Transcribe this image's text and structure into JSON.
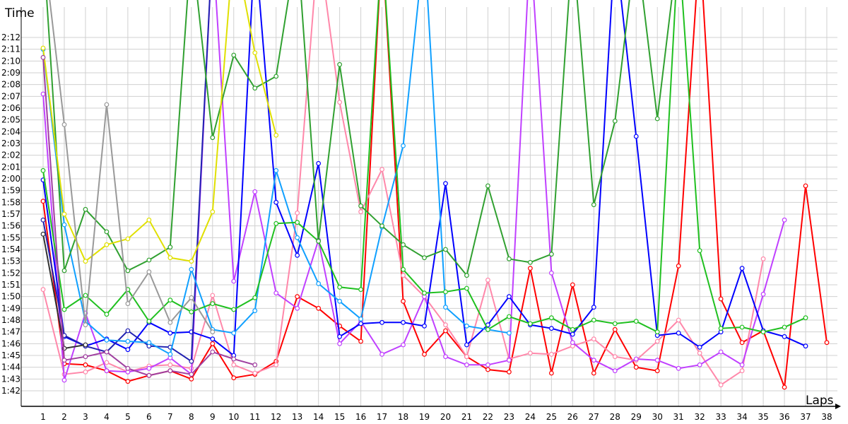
{
  "chart_data": {
    "type": "line",
    "ylabel": "Time",
    "xlabel": "Laps",
    "grid": true,
    "ylim": [
      "1:42",
      "2:12"
    ],
    "xlim": [
      1,
      38
    ],
    "y_ticks": [
      "1:42",
      "1:43",
      "1:44",
      "1:45",
      "1:46",
      "1:47",
      "1:48",
      "1:49",
      "1:50",
      "1:51",
      "1:52",
      "1:53",
      "1:54",
      "1:55",
      "1:56",
      "1:57",
      "1:58",
      "1:59",
      "2:00",
      "2:01",
      "2:02",
      "2:03",
      "2:04",
      "2:05",
      "2:06",
      "2:07",
      "2:08",
      "2:09",
      "2:10",
      "2:11",
      "2:12"
    ],
    "x_ticks": [
      "1",
      "2",
      "3",
      "4",
      "5",
      "6",
      "7",
      "8",
      "9",
      "10",
      "11",
      "12",
      "13",
      "14",
      "15",
      "16",
      "17",
      "18",
      "19",
      "20",
      "21",
      "22",
      "23",
      "24",
      "25",
      "26",
      "27",
      "28",
      "29",
      "30",
      "31",
      "32",
      "33",
      "34",
      "35",
      "36",
      "37",
      "38"
    ],
    "series": [
      {
        "color": "#ff0000",
        "values": [
          "1:58.1",
          "1:44.3",
          "1:44.2",
          "1:43.7",
          "1:42.8",
          "1:43.3",
          "1:43.7",
          "1:43.0",
          "1:46.0",
          "1:43.1",
          "1:43.4",
          "1:44.5",
          "1:50.0",
          "1:49.0",
          "1:47.5",
          "1:46.2",
          "2:20",
          "1:49.6",
          "1:45.1",
          "1:47.1",
          "1:44.9",
          "1:43.8",
          "1:43.6",
          "1:52.4",
          "1:43.5",
          "1:51.0",
          "1:43.5",
          "1:47.2",
          "1:44.0",
          "1:43.7",
          "1:52.6",
          "2:20",
          "1:49.8",
          "1:46.1",
          "1:47.1",
          "1:42.3",
          "1:59.4",
          "1:46.1"
        ]
      },
      {
        "color": "#ff88aa",
        "values": [
          "1:50.6",
          "1:43.4",
          "1:43.6",
          "1:44.4",
          "1:43.6",
          "1:44.1",
          "1:44.2",
          "1:43.9",
          "1:50.1",
          "1:44.2",
          "1:43.5",
          "1:44.2",
          "1:57.1",
          "2:20",
          "2:06.5",
          "1:57.2",
          "2:00.8",
          "1:51.8",
          "1:50.0",
          "1:47.6",
          "1:44.9",
          "1:51.4",
          "1:44.7",
          "1:45.2",
          "1:45.1",
          "1:45.8",
          "1:46.4",
          "1:44.9",
          "1:44.6",
          "1:46.2",
          "1:48.0",
          "1:45.2",
          "1:42.5",
          "1:43.7",
          "1:53.2",
          null,
          null,
          null
        ]
      },
      {
        "color": "#c040ff",
        "values": [
          "2:07.2",
          "1:42.9",
          "1:48.6",
          "1:43.7",
          "1:43.6",
          "1:43.9",
          "1:44.8",
          "1:43.4",
          "2:20",
          "1:51.3",
          "1:58.9",
          "1:50.3",
          "1:49.0",
          "1:54.8",
          "1:46.0",
          "1:47.9",
          "1:45.1",
          "1:45.9",
          "1:50.0",
          "1:44.9",
          "1:44.2",
          "1:44.2",
          "1:44.6",
          "2:20",
          "1:52.0",
          "1:46.1",
          "1:44.6",
          "1:43.7",
          "1:44.7",
          "1:44.6",
          "1:43.9",
          "1:44.2",
          "1:45.3",
          "1:44.2",
          "1:50.2",
          "1:56.5",
          null,
          null
        ]
      },
      {
        "color": "#0000ff",
        "values": [
          "1:59.9",
          "1:46.6",
          "1:45.8",
          "1:46.4",
          "1:45.5",
          "1:47.8",
          "1:46.9",
          "1:47.0",
          "1:46.4",
          "1:45.0",
          "2:20",
          "1:58.0",
          "1:53.5",
          "2:01.3",
          "1:46.6",
          "1:47.7",
          "1:47.8",
          "1:47.8",
          "1:47.5",
          "1:59.6",
          "1:45.9",
          "1:47.6",
          "1:50.0",
          "1:47.6",
          "1:47.3",
          "1:46.8",
          "1:49.1",
          "2:20",
          "2:03.6",
          "1:46.7",
          "1:46.9",
          "1:45.7",
          "1:47.0",
          "1:52.4",
          "1:47.1",
          "1:46.6",
          "1:45.8",
          null
        ]
      },
      {
        "color": "#2020b0",
        "values": [
          "1:56.5",
          "1:46.7",
          "1:45.8",
          "1:45.3",
          "1:47.1",
          "1:45.8",
          "1:45.7",
          "1:44.5",
          "2:20",
          null,
          null,
          null,
          null,
          null,
          null,
          null,
          null,
          null,
          null,
          null,
          null,
          null,
          null,
          null,
          null,
          null,
          null,
          null,
          null,
          null,
          null,
          null,
          null,
          null,
          null,
          null,
          null,
          null
        ]
      },
      {
        "color": "#10a0ff",
        "values": [
          "2:11.0",
          "1:56.1",
          "1:47.9",
          "1:46.3",
          "1:46.2",
          "1:46.1",
          "1:45.1",
          "1:52.3",
          "1:47.2",
          "1:46.9",
          "1:48.8",
          "2:00.7",
          "1:55.0",
          "1:51.1",
          "1:49.6",
          "1:48.1",
          "1:55.9",
          "2:02.8",
          "2:20",
          "1:49.1",
          "1:47.5",
          "1:47.2",
          "1:46.9",
          null,
          null,
          null,
          null,
          null,
          null,
          null,
          null,
          null,
          null,
          null,
          null,
          null,
          null,
          null
        ]
      },
      {
        "color": "#20c020",
        "values": [
          "2:00.7",
          "1:48.9",
          "1:50.1",
          "1:48.5",
          "1:50.6",
          "1:47.9",
          "1:49.7",
          "1:48.7",
          "1:49.4",
          "1:48.9",
          "1:49.9",
          "1:56.2",
          "1:56.3",
          "1:54.7",
          "1:50.8",
          "1:50.6",
          "2:20",
          "1:52.3",
          "1:50.3",
          "1:50.4",
          "1:50.7",
          "1:47.2",
          "1:48.3",
          "1:47.7",
          "1:48.2",
          "1:47.2",
          "1:48.0",
          "1:47.7",
          "1:47.9",
          "1:47.0",
          "2:20",
          "1:53.9",
          "1:47.3",
          "1:47.4",
          "1:47.0",
          "1:47.4",
          "1:48.2",
          null
        ]
      },
      {
        "color": "#30a030",
        "values": [
          "2:20",
          "1:52.2",
          "1:57.4",
          "1:55.5",
          "1:52.2",
          "1:53.1",
          "1:54.2",
          "2:20",
          "2:03.5",
          "2:10.5",
          "2:07.7",
          "2:08.7",
          "2:20",
          "1:54.7",
          "2:09.7",
          "1:57.7",
          "1:56.0",
          "1:54.4",
          "1:53.3",
          "1:54.0",
          "1:51.8",
          "1:59.4",
          "1:53.2",
          "1:52.9",
          "1:53.6",
          "2:20",
          "1:57.8",
          "2:04.9",
          "2:20",
          "2:05.1",
          "2:20",
          null,
          null,
          null,
          null,
          null,
          null,
          null
        ]
      },
      {
        "color": "#e0e000",
        "values": [
          "2:11.1",
          "1:57.0",
          "1:53.0",
          "1:54.4",
          "1:54.9",
          "1:56.5",
          "1:53.3",
          "1:53.0",
          "1:57.2",
          "2:20",
          "2:10.7",
          "2:03.7",
          null,
          null,
          null,
          null,
          null,
          null,
          null,
          null,
          null,
          null,
          null,
          null,
          null,
          null,
          null,
          null,
          null,
          null,
          null,
          null,
          null,
          null,
          null,
          null,
          null,
          null
        ]
      },
      {
        "color": "#999999",
        "values": [
          "2:20",
          "2:04.6",
          "1:47.6",
          "2:06.3",
          "1:49.4",
          "1:52.1",
          "1:47.8",
          "1:49.9",
          "1:47.0",
          null,
          null,
          null,
          null,
          null,
          null,
          null,
          null,
          null,
          null,
          null,
          null,
          null,
          null,
          null,
          null,
          null,
          null,
          null,
          null,
          null,
          null,
          null,
          null,
          null,
          null,
          null,
          null,
          null
        ]
      },
      {
        "color": "#333333",
        "values": [
          "1:55.3",
          "1:45.6",
          "1:45.9",
          null,
          null,
          null,
          null,
          null,
          null,
          null,
          null,
          null,
          null,
          null,
          null,
          null,
          null,
          null,
          null,
          null,
          null,
          null,
          null,
          null,
          null,
          null,
          null,
          null,
          null,
          null,
          null,
          null,
          null,
          null,
          null,
          null,
          null,
          null
        ]
      },
      {
        "color": "#a040a0",
        "values": [
          "2:10.3",
          "1:44.6",
          "1:44.9",
          "1:45.3",
          "1:43.9",
          "1:43.3",
          "1:43.7",
          "1:43.4",
          "1:45.3",
          "1:44.7",
          "1:44.2",
          null,
          null,
          null,
          null,
          null,
          null,
          null,
          null,
          null,
          null,
          null,
          null,
          null,
          null,
          null,
          null,
          null,
          null,
          null,
          null,
          null,
          null,
          null,
          null,
          null,
          null,
          null
        ]
      }
    ]
  }
}
